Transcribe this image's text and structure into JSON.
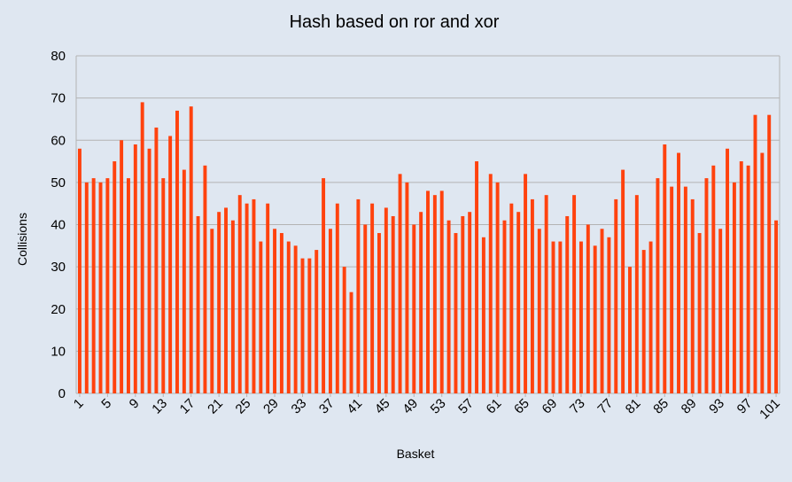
{
  "chart_data": {
    "type": "bar",
    "title": "Hash based on ror and xor",
    "xlabel": "Basket",
    "ylabel": "Collisions",
    "ylim": [
      0,
      80
    ],
    "yticks": [
      0,
      10,
      20,
      30,
      40,
      50,
      60,
      70,
      80
    ],
    "grid": true,
    "legend": "none",
    "bar_color": "#ff420e",
    "grid_color": "#b3b3b3",
    "categories": [
      1,
      2,
      3,
      4,
      5,
      6,
      7,
      8,
      9,
      10,
      11,
      12,
      13,
      14,
      15,
      16,
      17,
      18,
      19,
      20,
      21,
      22,
      23,
      24,
      25,
      26,
      27,
      28,
      29,
      30,
      31,
      32,
      33,
      34,
      35,
      36,
      37,
      38,
      39,
      40,
      41,
      42,
      43,
      44,
      45,
      46,
      47,
      48,
      49,
      50,
      51,
      52,
      53,
      54,
      55,
      56,
      57,
      58,
      59,
      60,
      61,
      62,
      63,
      64,
      65,
      66,
      67,
      68,
      69,
      70,
      71,
      72,
      73,
      74,
      75,
      76,
      77,
      78,
      79,
      80,
      81,
      82,
      83,
      84,
      85,
      86,
      87,
      88,
      89,
      90,
      91,
      92,
      93,
      94,
      95,
      96,
      97,
      98,
      99,
      100,
      101
    ],
    "x_tick_labels": [
      1,
      5,
      9,
      13,
      17,
      21,
      25,
      29,
      33,
      37,
      41,
      45,
      49,
      53,
      57,
      61,
      65,
      69,
      73,
      77,
      81,
      85,
      89,
      93,
      97,
      101
    ],
    "values": [
      58,
      50,
      51,
      50,
      51,
      55,
      60,
      51,
      59,
      69,
      58,
      63,
      51,
      61,
      67,
      53,
      68,
      42,
      54,
      39,
      43,
      44,
      41,
      47,
      45,
      46,
      36,
      45,
      39,
      38,
      36,
      35,
      32,
      32,
      34,
      51,
      39,
      45,
      30,
      24,
      46,
      40,
      45,
      38,
      44,
      42,
      52,
      50,
      40,
      43,
      48,
      47,
      48,
      41,
      38,
      42,
      43,
      55,
      37,
      52,
      50,
      41,
      45,
      43,
      52,
      46,
      39,
      47,
      36,
      36,
      42,
      47,
      36,
      40,
      35,
      39,
      37,
      46,
      53,
      30,
      47,
      34,
      36,
      51,
      59,
      49,
      57,
      49,
      46,
      38,
      51,
      54,
      39,
      58,
      50,
      55,
      54,
      66,
      57,
      66,
      41
    ]
  }
}
